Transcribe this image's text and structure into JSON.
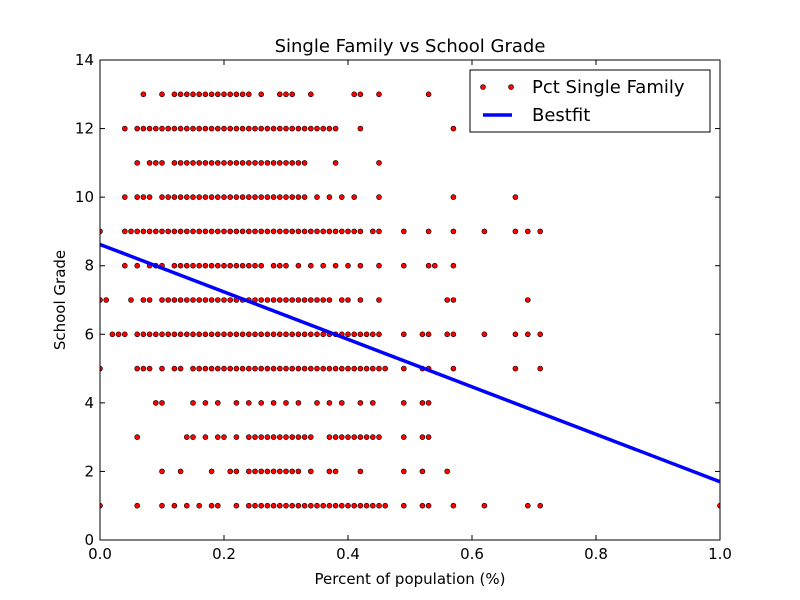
{
  "chart_data": {
    "type": "scatter",
    "title": "Single Family vs School Grade",
    "xlabel": "Percent of population (%)",
    "ylabel": "School Grade",
    "xlim": [
      0.0,
      1.0
    ],
    "ylim": [
      0,
      14
    ],
    "xticks": [
      0.0,
      0.2,
      0.4,
      0.6,
      0.8,
      1.0
    ],
    "xtick_labels": [
      "0.0",
      "0.2",
      "0.4",
      "0.6",
      "0.8",
      "1.0"
    ],
    "yticks": [
      0,
      2,
      4,
      6,
      8,
      10,
      12,
      14
    ],
    "ytick_labels": [
      "0",
      "2",
      "4",
      "6",
      "8",
      "10",
      "12",
      "14"
    ],
    "grid": false,
    "legend_position": "top-right",
    "legend": [
      {
        "label": "Pct Single Family",
        "kind": "marker",
        "color": "#ff0000"
      },
      {
        "label": "Bestfit",
        "kind": "line",
        "color": "#0000ff"
      }
    ],
    "series": [
      {
        "name": "Pct Single Family",
        "kind": "scatter",
        "color": "#ff0000",
        "edge_color": "#000000",
        "rows": [
          {
            "y": 13,
            "x": [
              0.07,
              0.1,
              0.12,
              0.13,
              0.14,
              0.15,
              0.16,
              0.17,
              0.18,
              0.19,
              0.2,
              0.21,
              0.22,
              0.23,
              0.24,
              0.26,
              0.29,
              0.3,
              0.31,
              0.34,
              0.41,
              0.42,
              0.45,
              0.53
            ]
          },
          {
            "y": 12,
            "x": [
              0.04,
              0.06,
              0.07,
              0.08,
              0.09,
              0.1,
              0.11,
              0.12,
              0.13,
              0.14,
              0.15,
              0.16,
              0.17,
              0.18,
              0.19,
              0.2,
              0.21,
              0.22,
              0.23,
              0.24,
              0.25,
              0.26,
              0.27,
              0.28,
              0.29,
              0.3,
              0.31,
              0.32,
              0.33,
              0.34,
              0.35,
              0.36,
              0.37,
              0.38,
              0.42,
              0.57
            ]
          },
          {
            "y": 11,
            "x": [
              0.06,
              0.08,
              0.09,
              0.1,
              0.12,
              0.13,
              0.14,
              0.15,
              0.16,
              0.17,
              0.18,
              0.19,
              0.2,
              0.21,
              0.22,
              0.23,
              0.24,
              0.25,
              0.26,
              0.27,
              0.28,
              0.29,
              0.3,
              0.31,
              0.32,
              0.33,
              0.38,
              0.45
            ]
          },
          {
            "y": 10,
            "x": [
              0.04,
              0.06,
              0.07,
              0.08,
              0.1,
              0.11,
              0.12,
              0.13,
              0.14,
              0.15,
              0.16,
              0.17,
              0.18,
              0.19,
              0.2,
              0.21,
              0.22,
              0.23,
              0.24,
              0.25,
              0.26,
              0.27,
              0.28,
              0.29,
              0.3,
              0.31,
              0.32,
              0.33,
              0.35,
              0.37,
              0.39,
              0.41,
              0.45,
              0.57,
              0.67
            ]
          },
          {
            "y": 9,
            "x": [
              0.0,
              0.04,
              0.05,
              0.06,
              0.07,
              0.08,
              0.09,
              0.1,
              0.11,
              0.12,
              0.13,
              0.14,
              0.15,
              0.16,
              0.17,
              0.18,
              0.19,
              0.2,
              0.21,
              0.22,
              0.23,
              0.24,
              0.25,
              0.26,
              0.27,
              0.28,
              0.29,
              0.3,
              0.31,
              0.32,
              0.33,
              0.34,
              0.35,
              0.36,
              0.37,
              0.38,
              0.39,
              0.4,
              0.41,
              0.42,
              0.44,
              0.45,
              0.49,
              0.53,
              0.57,
              0.62,
              0.67,
              0.69,
              0.71
            ]
          },
          {
            "y": 8,
            "x": [
              0.04,
              0.06,
              0.08,
              0.09,
              0.1,
              0.12,
              0.13,
              0.14,
              0.15,
              0.16,
              0.17,
              0.18,
              0.19,
              0.2,
              0.21,
              0.22,
              0.23,
              0.24,
              0.25,
              0.26,
              0.28,
              0.29,
              0.3,
              0.32,
              0.34,
              0.36,
              0.38,
              0.4,
              0.42,
              0.45,
              0.49,
              0.53,
              0.54,
              0.57
            ]
          },
          {
            "y": 7,
            "x": [
              0.0,
              0.01,
              0.05,
              0.07,
              0.08,
              0.1,
              0.11,
              0.12,
              0.13,
              0.14,
              0.15,
              0.16,
              0.17,
              0.18,
              0.19,
              0.2,
              0.21,
              0.22,
              0.23,
              0.24,
              0.25,
              0.26,
              0.27,
              0.28,
              0.29,
              0.3,
              0.31,
              0.32,
              0.33,
              0.34,
              0.35,
              0.36,
              0.37,
              0.39,
              0.4,
              0.42,
              0.45,
              0.56,
              0.57,
              0.69
            ]
          },
          {
            "y": 6,
            "x": [
              0.02,
              0.03,
              0.04,
              0.06,
              0.07,
              0.08,
              0.09,
              0.1,
              0.11,
              0.12,
              0.13,
              0.14,
              0.15,
              0.16,
              0.17,
              0.18,
              0.19,
              0.2,
              0.21,
              0.22,
              0.23,
              0.24,
              0.25,
              0.26,
              0.27,
              0.28,
              0.29,
              0.3,
              0.31,
              0.32,
              0.33,
              0.34,
              0.35,
              0.36,
              0.37,
              0.38,
              0.39,
              0.4,
              0.41,
              0.42,
              0.43,
              0.44,
              0.45,
              0.49,
              0.52,
              0.53,
              0.56,
              0.57,
              0.62,
              0.67,
              0.69,
              0.71
            ]
          },
          {
            "y": 5,
            "x": [
              0.0,
              0.06,
              0.07,
              0.08,
              0.1,
              0.12,
              0.13,
              0.15,
              0.16,
              0.17,
              0.18,
              0.19,
              0.2,
              0.21,
              0.22,
              0.23,
              0.24,
              0.25,
              0.26,
              0.27,
              0.28,
              0.29,
              0.3,
              0.31,
              0.32,
              0.33,
              0.34,
              0.35,
              0.36,
              0.37,
              0.38,
              0.39,
              0.4,
              0.41,
              0.42,
              0.43,
              0.44,
              0.45,
              0.46,
              0.49,
              0.52,
              0.53,
              0.57,
              0.67,
              0.71
            ]
          },
          {
            "y": 4,
            "x": [
              0.09,
              0.1,
              0.15,
              0.17,
              0.19,
              0.22,
              0.24,
              0.26,
              0.28,
              0.3,
              0.32,
              0.35,
              0.37,
              0.39,
              0.42,
              0.44,
              0.49,
              0.52,
              0.53
            ]
          },
          {
            "y": 3,
            "x": [
              0.06,
              0.14,
              0.15,
              0.17,
              0.19,
              0.2,
              0.22,
              0.24,
              0.25,
              0.26,
              0.27,
              0.28,
              0.29,
              0.3,
              0.31,
              0.32,
              0.33,
              0.34,
              0.37,
              0.38,
              0.39,
              0.4,
              0.41,
              0.42,
              0.43,
              0.44,
              0.45,
              0.49,
              0.52,
              0.53
            ]
          },
          {
            "y": 2,
            "x": [
              0.1,
              0.13,
              0.18,
              0.21,
              0.22,
              0.24,
              0.25,
              0.26,
              0.27,
              0.28,
              0.29,
              0.3,
              0.31,
              0.32,
              0.34,
              0.37,
              0.38,
              0.42,
              0.49,
              0.52,
              0.56
            ]
          },
          {
            "y": 1,
            "x": [
              0.0,
              0.06,
              0.1,
              0.12,
              0.14,
              0.16,
              0.18,
              0.19,
              0.22,
              0.24,
              0.25,
              0.26,
              0.27,
              0.28,
              0.29,
              0.3,
              0.31,
              0.32,
              0.33,
              0.34,
              0.35,
              0.36,
              0.37,
              0.38,
              0.39,
              0.4,
              0.41,
              0.42,
              0.43,
              0.44,
              0.45,
              0.46,
              0.49,
              0.52,
              0.53,
              0.57,
              0.62,
              0.69,
              0.71,
              1.0
            ]
          }
        ]
      },
      {
        "name": "Bestfit",
        "kind": "line",
        "color": "#0000ff",
        "x": [
          0.0,
          1.0
        ],
        "y": [
          8.62,
          1.7
        ]
      }
    ]
  }
}
